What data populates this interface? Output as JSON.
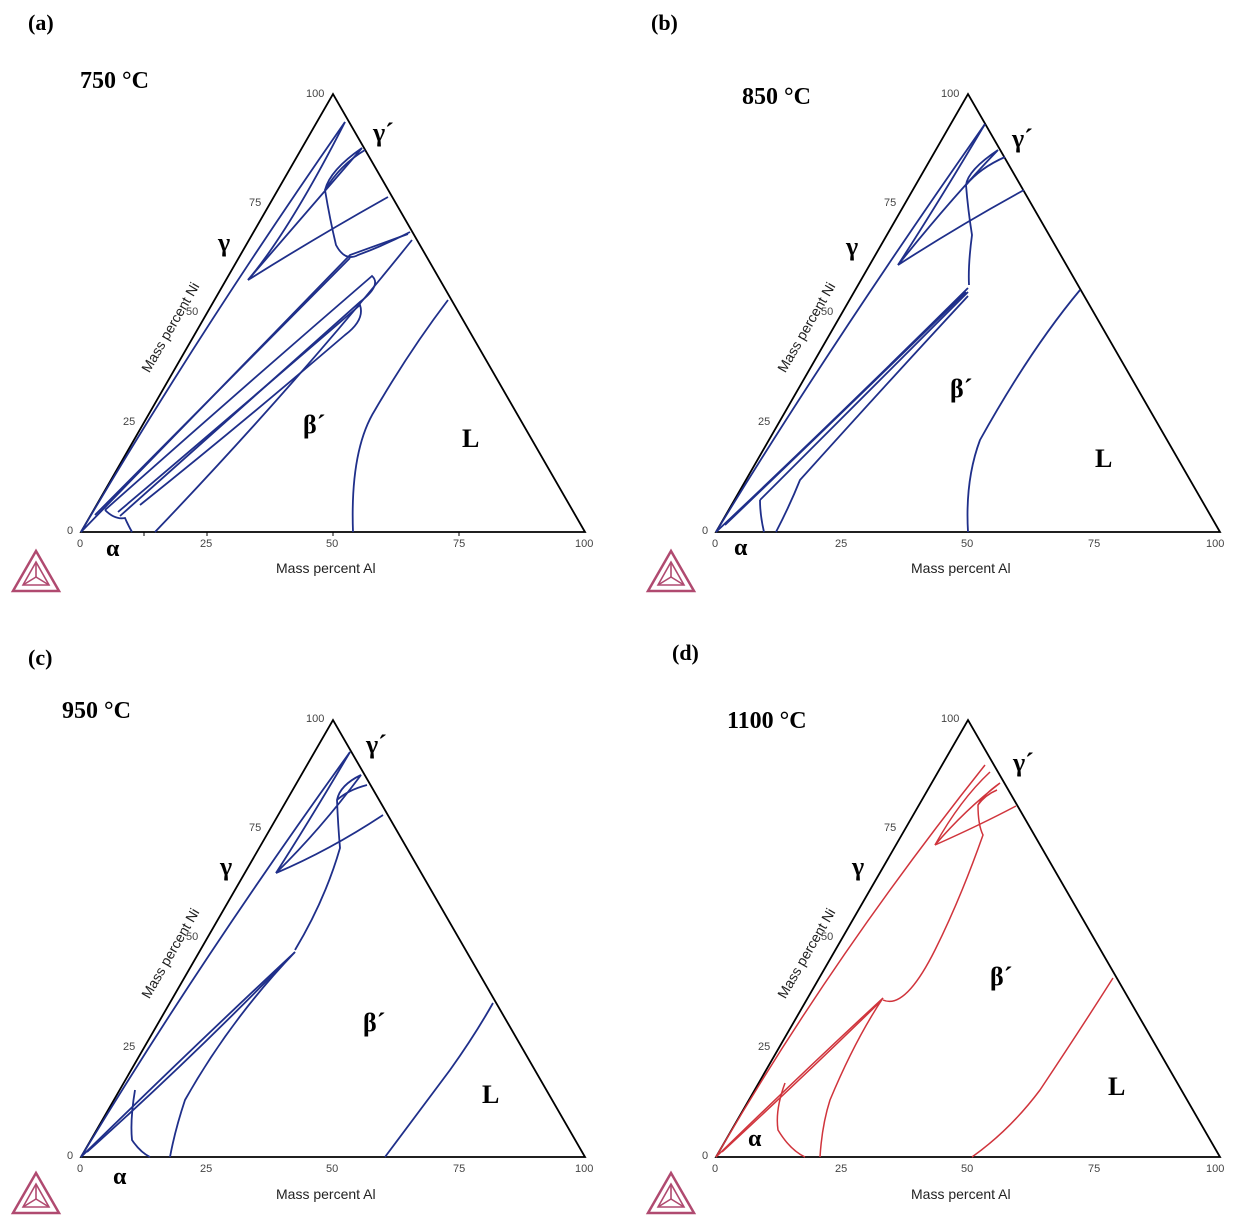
{
  "panels": [
    {
      "letter": "(a)",
      "temperature": "750 °C",
      "axis_x": "Mass percent Al",
      "axis_y": "Mass percent Ni",
      "ticks_x": [
        "0",
        "25",
        "50",
        "75",
        "100"
      ],
      "ticks_y": [
        "0",
        "25",
        "50",
        "75",
        "100"
      ],
      "phases": {
        "gamma": "γ",
        "gamma_prime": "γ´",
        "beta_prime": "β´",
        "liquid": "L",
        "alpha": "α"
      },
      "line_color": "#1f2f8a"
    },
    {
      "letter": "(b)",
      "temperature": "850 °C",
      "axis_x": "Mass percent Al",
      "axis_y": "Mass percent Ni",
      "ticks_x": [
        "0",
        "25",
        "50",
        "75",
        "100"
      ],
      "ticks_y": [
        "0",
        "25",
        "50",
        "75",
        "100"
      ],
      "phases": {
        "gamma": "γ",
        "gamma_prime": "γ´",
        "beta_prime": "β´",
        "liquid": "L",
        "alpha": "α"
      },
      "line_color": "#1f2f8a"
    },
    {
      "letter": "(c)",
      "temperature": "950 °C",
      "axis_x": "Mass percent Al",
      "axis_y": "Mass percent Ni",
      "ticks_x": [
        "0",
        "25",
        "50",
        "75",
        "100"
      ],
      "ticks_y": [
        "0",
        "25",
        "50",
        "75",
        "100"
      ],
      "phases": {
        "gamma": "γ",
        "gamma_prime": "γ´",
        "beta_prime": "β´",
        "liquid": "L",
        "alpha": "α"
      },
      "line_color": "#1f2f8a"
    },
    {
      "letter": "(d)",
      "temperature": "1100 °C",
      "axis_x": "Mass percent Al",
      "axis_y": "Mass percent Ni",
      "ticks_x": [
        "0",
        "25",
        "50",
        "75",
        "100"
      ],
      "ticks_y": [
        "0",
        "25",
        "50",
        "75",
        "100"
      ],
      "phases": {
        "gamma": "γ",
        "gamma_prime": "γ´",
        "beta_prime": "β´",
        "liquid": "L",
        "alpha": "α"
      },
      "line_color": "#d0343c"
    }
  ],
  "logo_color": "#b04a70"
}
